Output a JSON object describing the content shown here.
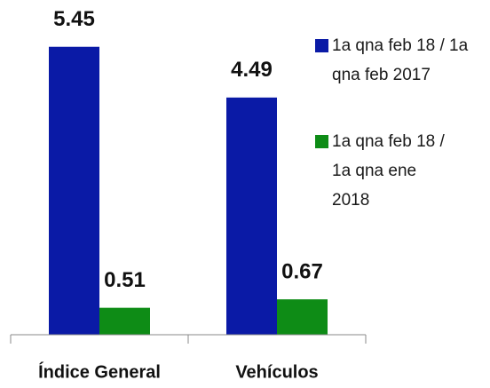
{
  "chart_data": {
    "type": "bar",
    "categories": [
      "Índice General",
      "Vehículos"
    ],
    "series": [
      {
        "name": "1a qna feb 18 / 1a qna feb 2017",
        "color": "#0a1aa6",
        "values": [
          5.45,
          4.49
        ]
      },
      {
        "name": "1a qna feb 18 / 1a qna ene 2018",
        "color": "#0e8c16",
        "values": [
          0.51,
          0.67
        ]
      }
    ],
    "ylim": [
      0,
      6
    ]
  }
}
